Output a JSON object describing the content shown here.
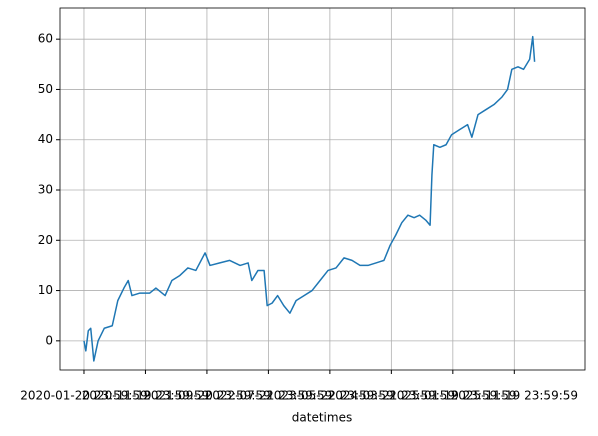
{
  "chart_data": {
    "type": "line",
    "xlabel": "datetimes",
    "x": [
      0,
      3,
      7,
      11,
      16,
      23,
      33,
      46,
      55,
      65,
      72,
      78,
      91,
      107,
      117,
      132,
      143,
      156,
      169,
      182,
      197,
      205,
      221,
      237,
      254,
      267,
      273,
      283,
      293,
      298,
      306,
      315,
      325,
      335,
      345,
      358,
      371,
      384,
      397,
      410,
      423,
      436,
      449,
      462,
      475,
      488,
      498,
      507,
      517,
      527,
      537,
      546,
      556,
      563,
      566,
      569,
      579,
      589,
      598,
      611,
      624,
      631,
      641,
      654,
      667,
      680,
      689,
      696,
      706,
      715,
      725,
      730,
      733
    ],
    "series": [
      {
        "name": "value",
        "color": "#1f77b4",
        "values": [
          0,
          -2,
          2,
          2.5,
          -4,
          0,
          2.5,
          3,
          8,
          10.5,
          12,
          9,
          9.5,
          9.5,
          10.5,
          9,
          12,
          13,
          14.5,
          14,
          17.5,
          15,
          15.5,
          16,
          15,
          15.5,
          12,
          14,
          14,
          7,
          7.5,
          9,
          7,
          5.5,
          8,
          9,
          10,
          12,
          14,
          14.5,
          16.5,
          16,
          15,
          15,
          15.5,
          16,
          19,
          21,
          23.5,
          25,
          24.5,
          25,
          24,
          23,
          33,
          39,
          38.5,
          39,
          41,
          42,
          43,
          40.5,
          45,
          46,
          47,
          48.5,
          50,
          54,
          54.5,
          54,
          56,
          60.5,
          55.5
        ]
      }
    ],
    "xlim": [
      -39,
      815
    ],
    "xticks": [
      {
        "value": 0,
        "label": "2020-01-20 23:59:59"
      },
      {
        "value": 100,
        "label": "2020-11-19 23:59:59"
      },
      {
        "value": 200,
        "label": "2021-09-20 23:59:59"
      },
      {
        "value": 300,
        "label": "2022-07-21 23:59:59"
      },
      {
        "value": 400,
        "label": "2023-05-22 23:59:59"
      },
      {
        "value": 500,
        "label": "2024-03-21 23:59:59"
      },
      {
        "value": 600,
        "label": "2025-01-19 23:59:59"
      },
      {
        "value": 700,
        "label": "2025-11-19 23:59:59"
      }
    ],
    "ylim": [
      -5.8,
      66.2
    ],
    "yticks": [
      0,
      10,
      20,
      30,
      40,
      50,
      60
    ],
    "grid": true
  }
}
